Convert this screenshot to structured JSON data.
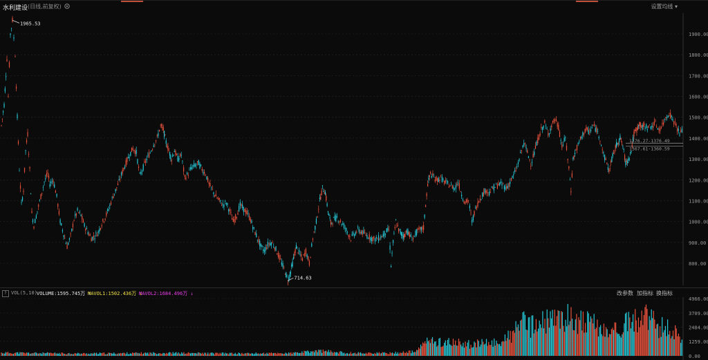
{
  "header": {
    "title": "水利建设",
    "subtitle": "(日线,前复权)",
    "settings_icon": "gear-icon",
    "ma_settings_label": "设置均线",
    "ma_caret": "▾"
  },
  "chart_data": {
    "type": "candlestick",
    "price_axis": {
      "ticks": [
        "1900.00",
        "1800.00",
        "1700.00",
        "1600.00",
        "1500.00",
        "1400.00",
        "1300.00",
        "1200.00",
        "1100.00",
        "1000.00",
        "900.00",
        "800.00"
      ]
    },
    "annotations": {
      "high_label": "1965.53",
      "low_label": "714.63",
      "overlay_line_1": "1376.27-1376.49",
      "overlay_line_2": "1367.61-1360.59"
    },
    "price_series_points": [
      [
        0,
        1460
      ],
      [
        4,
        1560
      ],
      [
        8,
        1780
      ],
      [
        10,
        1600
      ],
      [
        13,
        1900
      ],
      [
        16,
        1965
      ],
      [
        18,
        1880
      ],
      [
        20,
        1800
      ],
      [
        23,
        1500
      ],
      [
        26,
        1250
      ],
      [
        29,
        1080
      ],
      [
        32,
        1150
      ],
      [
        35,
        1340
      ],
      [
        38,
        1420
      ],
      [
        41,
        1250
      ],
      [
        44,
        1040
      ],
      [
        47,
        980
      ],
      [
        52,
        1050
      ],
      [
        57,
        1120
      ],
      [
        62,
        1190
      ],
      [
        67,
        1230
      ],
      [
        70,
        1180
      ],
      [
        75,
        1200
      ],
      [
        80,
        1120
      ],
      [
        85,
        1000
      ],
      [
        90,
        940
      ],
      [
        95,
        880
      ],
      [
        100,
        930
      ],
      [
        105,
        1010
      ],
      [
        110,
        1050
      ],
      [
        115,
        1030
      ],
      [
        120,
        980
      ],
      [
        125,
        950
      ],
      [
        130,
        920
      ],
      [
        135,
        930
      ],
      [
        140,
        950
      ],
      [
        145,
        990
      ],
      [
        150,
        1020
      ],
      [
        155,
        1060
      ],
      [
        160,
        1110
      ],
      [
        165,
        1150
      ],
      [
        170,
        1190
      ],
      [
        175,
        1240
      ],
      [
        180,
        1280
      ],
      [
        185,
        1320
      ],
      [
        190,
        1350
      ],
      [
        195,
        1330
      ],
      [
        200,
        1220
      ],
      [
        205,
        1260
      ],
      [
        210,
        1300
      ],
      [
        215,
        1330
      ],
      [
        220,
        1370
      ],
      [
        225,
        1400
      ],
      [
        230,
        1460
      ],
      [
        234,
        1440
      ],
      [
        238,
        1380
      ],
      [
        242,
        1340
      ],
      [
        246,
        1300
      ],
      [
        250,
        1340
      ],
      [
        255,
        1300
      ],
      [
        260,
        1320
      ],
      [
        265,
        1210
      ],
      [
        270,
        1230
      ],
      [
        275,
        1260
      ],
      [
        280,
        1270
      ],
      [
        285,
        1280
      ],
      [
        290,
        1250
      ],
      [
        295,
        1230
      ],
      [
        300,
        1180
      ],
      [
        305,
        1150
      ],
      [
        310,
        1120
      ],
      [
        315,
        1100
      ],
      [
        320,
        1080
      ],
      [
        325,
        1090
      ],
      [
        330,
        1050
      ],
      [
        335,
        1000
      ],
      [
        340,
        1030
      ],
      [
        345,
        1080
      ],
      [
        350,
        1060
      ],
      [
        355,
        1040
      ],
      [
        360,
        1010
      ],
      [
        365,
        960
      ],
      [
        370,
        920
      ],
      [
        375,
        880
      ],
      [
        380,
        860
      ],
      [
        385,
        890
      ],
      [
        390,
        900
      ],
      [
        395,
        880
      ],
      [
        400,
        840
      ],
      [
        405,
        800
      ],
      [
        410,
        760
      ],
      [
        414,
        716
      ],
      [
        418,
        760
      ],
      [
        422,
        820
      ],
      [
        426,
        880
      ],
      [
        430,
        850
      ],
      [
        435,
        820
      ],
      [
        440,
        860
      ],
      [
        445,
        800
      ],
      [
        450,
        920
      ],
      [
        455,
        1000
      ],
      [
        460,
        1100
      ],
      [
        464,
        1160
      ],
      [
        468,
        1140
      ],
      [
        472,
        1050
      ],
      [
        476,
        990
      ],
      [
        480,
        1010
      ],
      [
        485,
        1020
      ],
      [
        490,
        1000
      ],
      [
        495,
        980
      ],
      [
        500,
        950
      ],
      [
        505,
        920
      ],
      [
        510,
        940
      ],
      [
        515,
        960
      ],
      [
        520,
        950
      ],
      [
        525,
        940
      ],
      [
        530,
        930
      ],
      [
        535,
        920
      ],
      [
        540,
        915
      ],
      [
        545,
        920
      ],
      [
        550,
        930
      ],
      [
        555,
        950
      ],
      [
        560,
        960
      ],
      [
        563,
        790
      ],
      [
        566,
        900
      ],
      [
        570,
        1000
      ],
      [
        574,
        960
      ],
      [
        578,
        940
      ],
      [
        582,
        930
      ],
      [
        586,
        960
      ],
      [
        590,
        930
      ],
      [
        595,
        920
      ],
      [
        600,
        950
      ],
      [
        605,
        960
      ],
      [
        610,
        970
      ],
      [
        613,
        1080
      ],
      [
        616,
        1180
      ],
      [
        620,
        1230
      ],
      [
        625,
        1210
      ],
      [
        630,
        1200
      ],
      [
        635,
        1210
      ],
      [
        640,
        1190
      ],
      [
        645,
        1180
      ],
      [
        650,
        1170
      ],
      [
        655,
        1160
      ],
      [
        660,
        1190
      ],
      [
        665,
        1130
      ],
      [
        670,
        1090
      ],
      [
        675,
        1100
      ],
      [
        680,
        1000
      ],
      [
        685,
        1060
      ],
      [
        690,
        1100
      ],
      [
        695,
        1130
      ],
      [
        700,
        1150
      ],
      [
        705,
        1140
      ],
      [
        710,
        1160
      ],
      [
        715,
        1170
      ],
      [
        720,
        1180
      ],
      [
        725,
        1175
      ],
      [
        730,
        1160
      ],
      [
        735,
        1190
      ],
      [
        740,
        1220
      ],
      [
        745,
        1260
      ],
      [
        750,
        1320
      ],
      [
        755,
        1380
      ],
      [
        760,
        1330
      ],
      [
        765,
        1280
      ],
      [
        770,
        1330
      ],
      [
        775,
        1390
      ],
      [
        780,
        1440
      ],
      [
        785,
        1470
      ],
      [
        790,
        1420
      ],
      [
        795,
        1460
      ],
      [
        800,
        1490
      ],
      [
        805,
        1450
      ],
      [
        810,
        1360
      ],
      [
        815,
        1400
      ],
      [
        820,
        1250
      ],
      [
        823,
        1150
      ],
      [
        826,
        1300
      ],
      [
        830,
        1340
      ],
      [
        835,
        1380
      ],
      [
        840,
        1420
      ],
      [
        845,
        1440
      ],
      [
        850,
        1430
      ],
      [
        855,
        1460
      ],
      [
        860,
        1440
      ],
      [
        865,
        1400
      ],
      [
        870,
        1320
      ],
      [
        875,
        1280
      ],
      [
        878,
        1240
      ],
      [
        882,
        1300
      ],
      [
        886,
        1340
      ],
      [
        890,
        1380
      ],
      [
        894,
        1400
      ],
      [
        898,
        1360
      ],
      [
        902,
        1280
      ],
      [
        906,
        1300
      ],
      [
        910,
        1340
      ],
      [
        914,
        1420
      ],
      [
        918,
        1440
      ],
      [
        922,
        1470
      ],
      [
        926,
        1450
      ],
      [
        930,
        1460
      ],
      [
        935,
        1450
      ],
      [
        940,
        1460
      ],
      [
        945,
        1470
      ],
      [
        950,
        1440
      ],
      [
        955,
        1460
      ],
      [
        960,
        1500
      ],
      [
        965,
        1520
      ],
      [
        970,
        1490
      ],
      [
        975,
        1460
      ],
      [
        980,
        1420
      ],
      [
        985,
        1440
      ]
    ],
    "volume_axis": {
      "ticks": [
        "4966.00",
        "3709.00",
        "2484.00",
        "1259.00",
        "0.00"
      ]
    },
    "volume_points": [
      [
        0,
        300
      ],
      [
        60,
        250
      ],
      [
        120,
        220
      ],
      [
        180,
        250
      ],
      [
        240,
        280
      ],
      [
        300,
        240
      ],
      [
        360,
        230
      ],
      [
        420,
        260
      ],
      [
        460,
        480
      ],
      [
        500,
        280
      ],
      [
        560,
        260
      ],
      [
        600,
        420
      ],
      [
        612,
        1400
      ],
      [
        640,
        1300
      ],
      [
        680,
        1100
      ],
      [
        720,
        1300
      ],
      [
        740,
        2100
      ],
      [
        750,
        3500
      ],
      [
        760,
        2700
      ],
      [
        790,
        3300
      ],
      [
        820,
        3700
      ],
      [
        850,
        3100
      ],
      [
        880,
        2200
      ],
      [
        900,
        3000
      ],
      [
        930,
        3700
      ],
      [
        950,
        2800
      ],
      [
        980,
        2200
      ],
      [
        985,
        1500
      ]
    ]
  },
  "indicator_bar": {
    "help_label": "?",
    "vol_label": "VOL(5,10)",
    "vol_value": "VOLUME:1595.745万 ↑",
    "mavol1": "MAVOL1:1502.436万 ↓",
    "mavol2": "MAVOL2:1684.496万 ↓",
    "btn_params": "改参数",
    "btn_add": "加指标",
    "btn_switch": "换指标"
  },
  "colors": {
    "up": "#e8523d",
    "down": "#27c9d8",
    "grid": "#2a2a2a",
    "axis_text": "#9a9a9a",
    "mavol1": "#f0e14a",
    "mavol2": "#e93ee9"
  }
}
